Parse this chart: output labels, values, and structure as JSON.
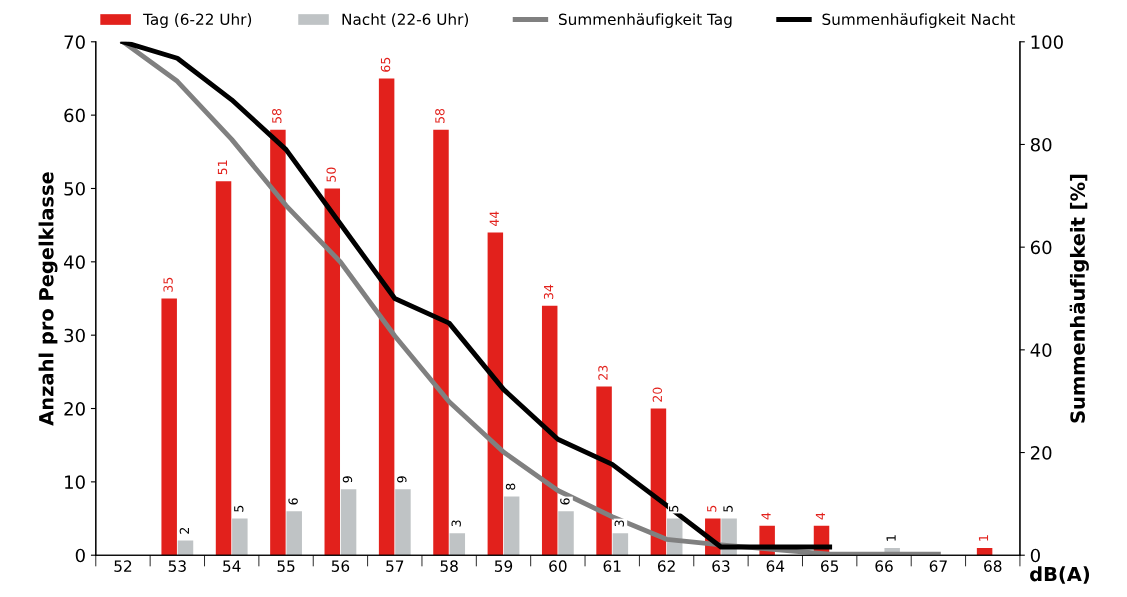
{
  "chart_data": {
    "type": "bar",
    "xlabel": "dB(A)",
    "ylabel": "Anzahl pro Pegelklasse",
    "y2label": "Summenhäufigkeit [%]",
    "categories": [
      "52",
      "53",
      "54",
      "55",
      "56",
      "57",
      "58",
      "59",
      "60",
      "61",
      "62",
      "63",
      "64",
      "65",
      "66",
      "67",
      "68"
    ],
    "series": [
      {
        "name": "Tag (6-22 Uhr)",
        "color": "#e2211c",
        "values": [
          null,
          35,
          51,
          58,
          50,
          65,
          58,
          44,
          34,
          23,
          20,
          5,
          4,
          4,
          null,
          null,
          1
        ],
        "value_labels": [
          null,
          "35",
          "51",
          "58",
          "50",
          "65",
          "58",
          "44",
          "34",
          "23",
          "20",
          "5",
          "4",
          "4",
          null,
          null,
          "1"
        ]
      },
      {
        "name": "Nacht (22-6 Uhr)",
        "color": "#bfc3c5",
        "values": [
          null,
          2,
          5,
          6,
          9,
          9,
          3,
          8,
          6,
          3,
          5,
          5,
          null,
          null,
          1,
          null,
          null
        ],
        "value_labels": [
          null,
          "2",
          "5",
          "6",
          "9",
          "9",
          "3",
          "8",
          "6",
          "3",
          "5",
          "5",
          null,
          null,
          "1",
          null,
          null
        ]
      },
      {
        "name": "Summenhäufigkeit Tag",
        "type": "line",
        "axis": "y2",
        "color": "#808080",
        "values": [
          100,
          92.3,
          81.0,
          68.1,
          57.1,
          42.7,
          29.9,
          20.1,
          12.6,
          7.5,
          3.1,
          2.0,
          1.1,
          0.2,
          0.2,
          0.2,
          null
        ]
      },
      {
        "name": "Summenhäufigkeit Nacht",
        "type": "line",
        "axis": "y2",
        "color": "#000000",
        "values": [
          100,
          96.8,
          88.7,
          79.0,
          64.5,
          50.0,
          45.2,
          32.3,
          22.6,
          17.7,
          9.7,
          1.6,
          1.6,
          1.6,
          null,
          null,
          null
        ]
      }
    ],
    "ylim": [
      0,
      70
    ],
    "yticks": [
      0,
      10,
      20,
      30,
      40,
      50,
      60,
      70
    ],
    "y2lim": [
      0,
      100
    ],
    "y2ticks": [
      0,
      20,
      40,
      60,
      80,
      100
    ],
    "grid": false,
    "legend": "top",
    "marker": "none",
    "line_style": "solid"
  }
}
